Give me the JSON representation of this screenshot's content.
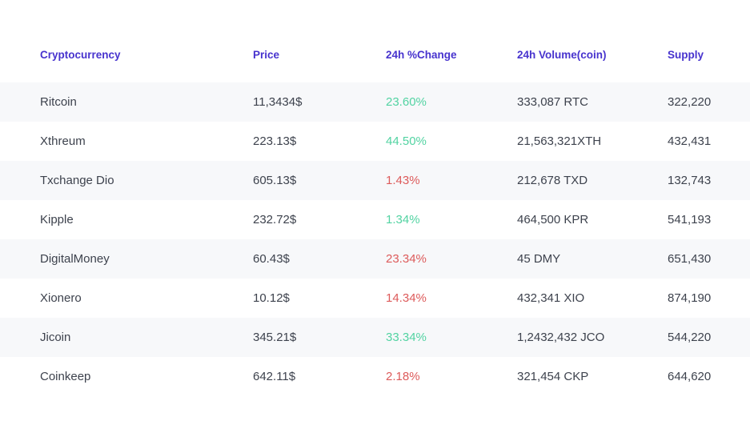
{
  "colors": {
    "header_text": "#4733ce",
    "positive_change": "#52d3a2",
    "negative_change": "#dd5b5b",
    "row_stripe": "#f7f8fa",
    "body_text": "#3d424d",
    "background": "#ffffff"
  },
  "table": {
    "columns": [
      "Cryptocurrency",
      "Price",
      "24h %Change",
      "24h Volume(coin)",
      "Supply"
    ],
    "rows": [
      {
        "name": "Ritcoin",
        "price": "11,3434$",
        "change": "23.60%",
        "change_direction": "up",
        "volume": "333,087 RTC",
        "supply": "322,220"
      },
      {
        "name": "Xthreum",
        "price": "223.13$",
        "change": "44.50%",
        "change_direction": "up",
        "volume": "21,563,321XTH",
        "supply": "432,431"
      },
      {
        "name": "Txchange Dio",
        "price": "605.13$",
        "change": "1.43%",
        "change_direction": "down",
        "volume": "212,678 TXD",
        "supply": "132,743"
      },
      {
        "name": "Kipple",
        "price": "232.72$",
        "change": "1.34%",
        "change_direction": "up",
        "volume": "464,500 KPR",
        "supply": "541,193"
      },
      {
        "name": "DigitalMoney",
        "price": "60.43$",
        "change": "23.34%",
        "change_direction": "down",
        "volume": "45 DMY",
        "supply": "651,430"
      },
      {
        "name": "Xionero",
        "price": "10.12$",
        "change": "14.34%",
        "change_direction": "down",
        "volume": "432,341 XIO",
        "supply": "874,190"
      },
      {
        "name": "Jicoin",
        "price": "345.21$",
        "change": "33.34%",
        "change_direction": "up",
        "volume": "1,2432,432 JCO",
        "supply": "544,220"
      },
      {
        "name": "Coinkeep",
        "price": "642.11$",
        "change": "2.18%",
        "change_direction": "down",
        "volume": "321,454 CKP",
        "supply": "644,620"
      }
    ]
  }
}
